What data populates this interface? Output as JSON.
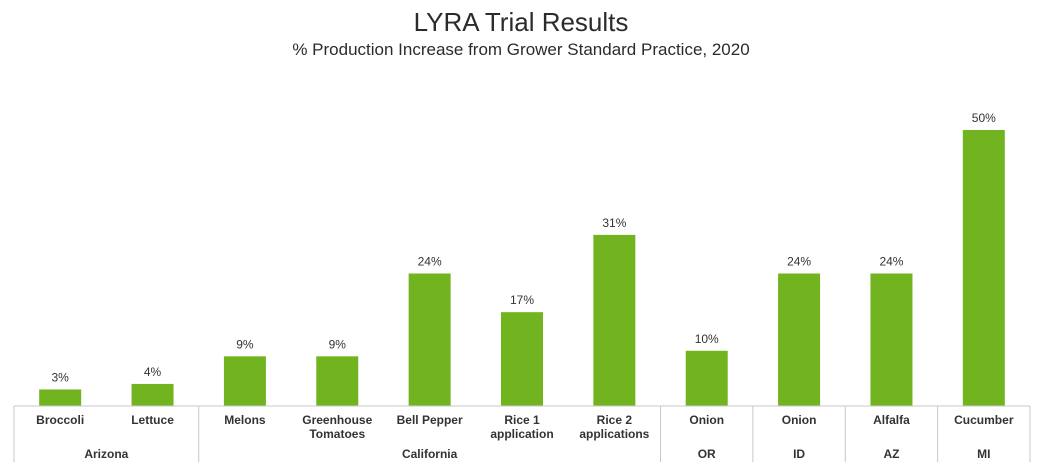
{
  "chart_data": {
    "type": "bar",
    "title": "LYRA Trial Results",
    "subtitle": "% Production Increase from Grower Standard Practice, 2020",
    "bar_color": "#72b41f",
    "categories": [
      [
        "Broccoli"
      ],
      [
        "Lettuce"
      ],
      [
        "Melons"
      ],
      [
        "Greenhouse",
        "Tomatoes"
      ],
      [
        "Bell Pepper"
      ],
      [
        "Rice 1",
        "application"
      ],
      [
        "Rice 2",
        "applications"
      ],
      [
        "Onion"
      ],
      [
        "Onion"
      ],
      [
        "Alfalfa"
      ],
      [
        "Cucumber"
      ]
    ],
    "values": [
      3,
      4,
      9,
      9,
      24,
      17,
      31,
      10,
      24,
      24,
      50
    ],
    "data_labels": [
      "3%",
      "4%",
      "9%",
      "9%",
      "24%",
      "17%",
      "31%",
      "10%",
      "24%",
      "24%",
      "50%"
    ],
    "groups": [
      {
        "label": "Arizona",
        "start": 0,
        "end": 1
      },
      {
        "label": "California",
        "start": 2,
        "end": 6
      },
      {
        "label": "OR",
        "start": 7,
        "end": 7
      },
      {
        "label": "ID",
        "start": 8,
        "end": 8
      },
      {
        "label": "AZ",
        "start": 9,
        "end": 9
      },
      {
        "label": "MI",
        "start": 10,
        "end": 10
      }
    ],
    "ylim": [
      0,
      50
    ],
    "grid": false
  }
}
